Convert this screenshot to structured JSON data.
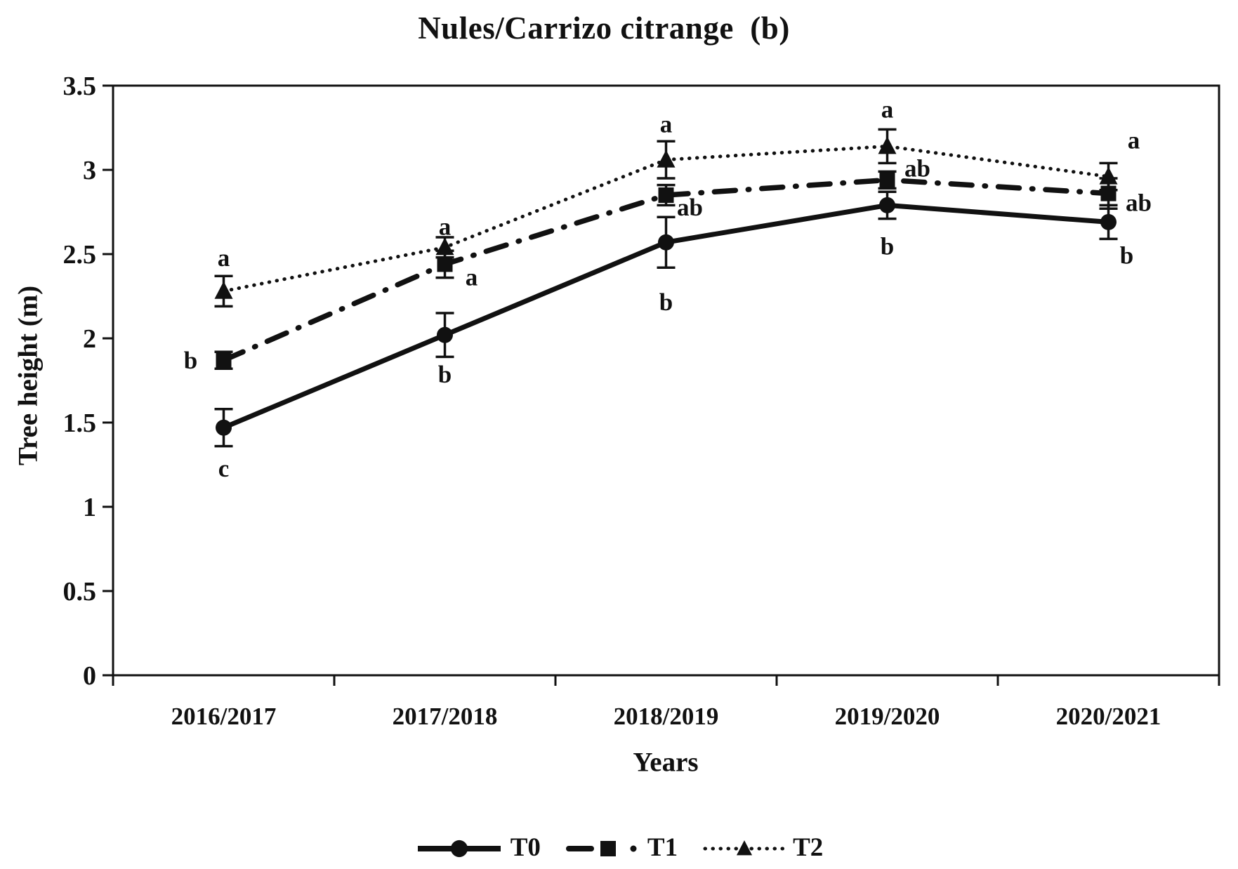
{
  "title": "Nules/Carrizo citrange  (b)",
  "axes": {
    "y_label": "Tree height (m)",
    "x_label": "Years",
    "y_min": 0,
    "y_max": 3.5,
    "y_step": 0.5
  },
  "chart_data": {
    "type": "line",
    "title": "Nules/Carrizo citrange  (b)",
    "xlabel": "Years",
    "ylabel": "Tree height (m)",
    "ylim": [
      0,
      3.5
    ],
    "grid": false,
    "legend_position": "bottom",
    "categories": [
      "2016/2017",
      "2017/2018",
      "2018/2019",
      "2019/2020",
      "2020/2021"
    ],
    "series": [
      {
        "name": "T0",
        "line": "solid",
        "marker": "circle",
        "values": [
          1.47,
          2.02,
          2.57,
          2.79,
          2.69
        ],
        "errors": [
          0.11,
          0.13,
          0.15,
          0.08,
          0.1
        ],
        "letters": [
          "c",
          "b",
          "b",
          "b",
          "b"
        ],
        "letter_offsets": [
          [
            0,
            70
          ],
          [
            0,
            68
          ],
          [
            0,
            97
          ],
          [
            0,
            70
          ],
          [
            26,
            59
          ]
        ]
      },
      {
        "name": "T1",
        "line": "dashdot",
        "marker": "square",
        "values": [
          1.87,
          2.44,
          2.85,
          2.94,
          2.86
        ],
        "errors": [
          0.05,
          0.08,
          0.06,
          0.05,
          0.09
        ],
        "letters": [
          "b",
          "a",
          "ab",
          "ab",
          "ab"
        ],
        "letter_offsets": [
          [
            -47,
            12
          ],
          [
            38,
            30
          ],
          [
            34,
            29
          ],
          [
            43,
            -5
          ],
          [
            43,
            25
          ]
        ]
      },
      {
        "name": "T2",
        "line": "dotted",
        "marker": "triangle",
        "values": [
          2.28,
          2.54,
          3.06,
          3.14,
          2.96
        ],
        "errors": [
          0.09,
          0.06,
          0.11,
          0.1,
          0.08
        ],
        "letters": [
          "a",
          "a",
          "a",
          "a",
          "a"
        ],
        "letter_offsets": [
          [
            0,
            -36
          ],
          [
            0,
            -18
          ],
          [
            0,
            -39
          ],
          [
            0,
            -41
          ],
          [
            36,
            -40
          ]
        ]
      }
    ]
  },
  "legend": {
    "items": [
      {
        "label": "T0"
      },
      {
        "label": "T1"
      },
      {
        "label": "T2"
      }
    ]
  },
  "colors": {
    "ink": "#111111",
    "background": "#ffffff"
  }
}
